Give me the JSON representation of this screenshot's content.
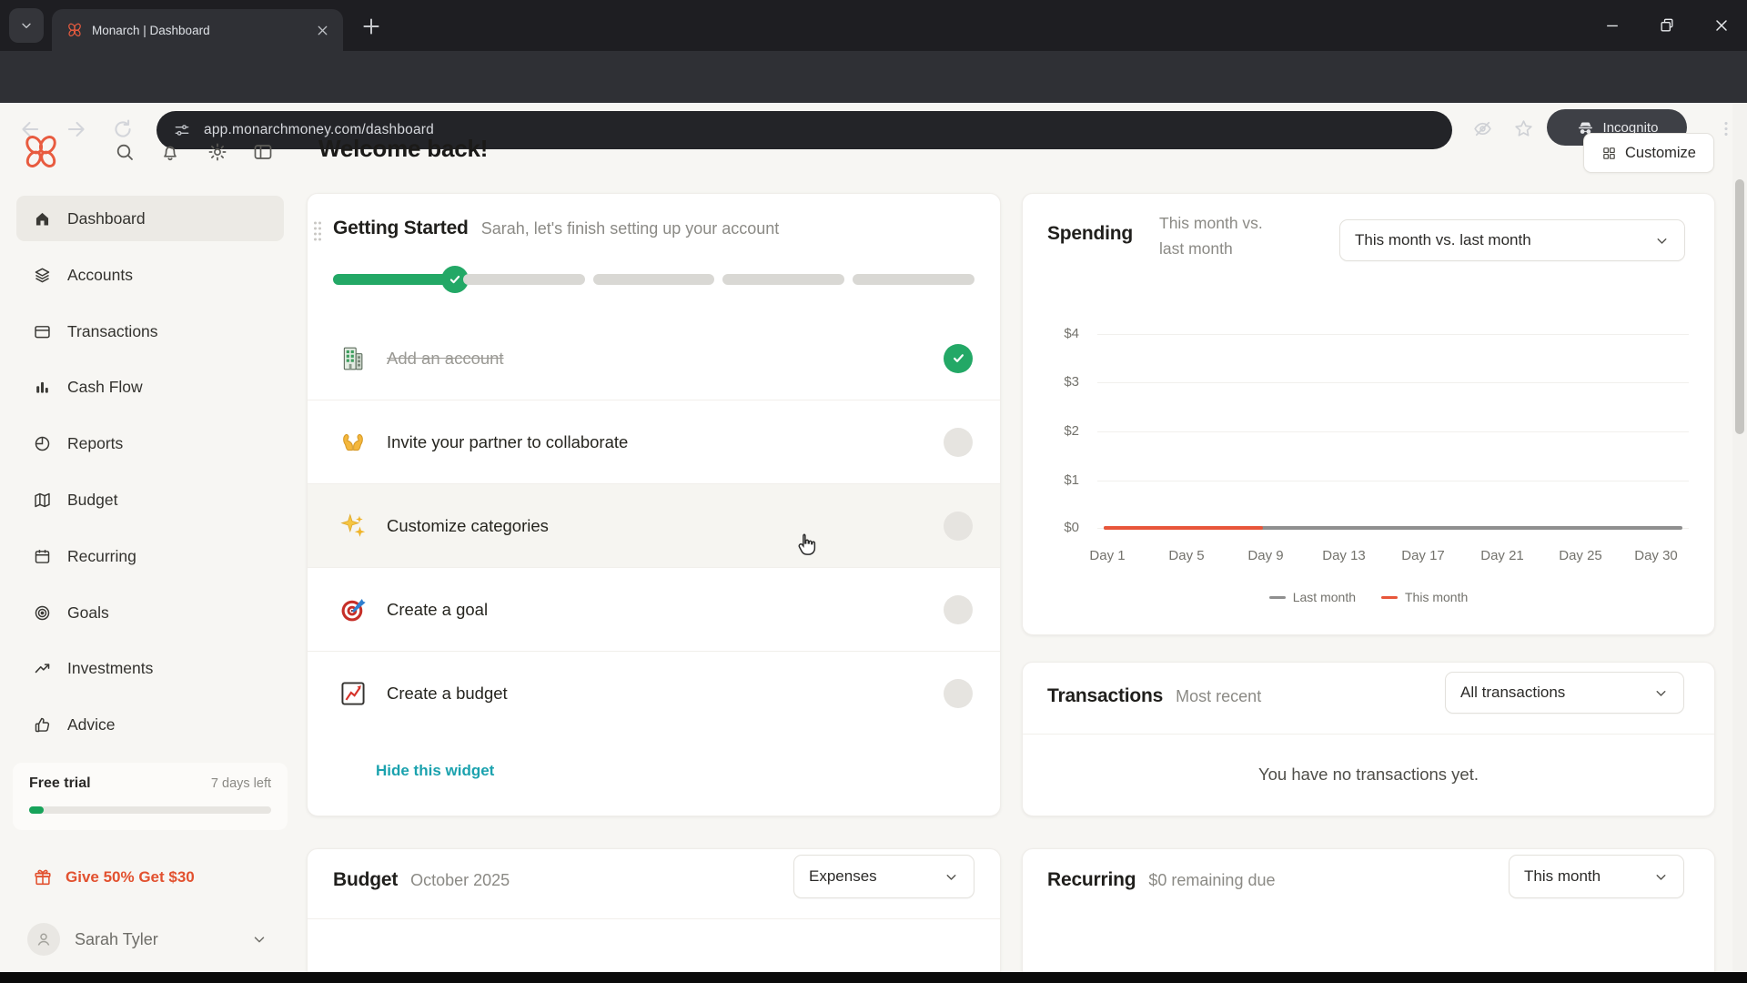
{
  "browser": {
    "tab": {
      "title": "Monarch | Dashboard"
    },
    "url": "app.monarchmoney.com/dashboard",
    "incognito_label": "Incognito"
  },
  "header": {
    "title": "Welcome back!",
    "customize_label": "Customize"
  },
  "sidebar": {
    "items": [
      {
        "label": "Dashboard",
        "icon": "home-icon",
        "active": true
      },
      {
        "label": "Accounts",
        "icon": "accounts-icon",
        "active": false
      },
      {
        "label": "Transactions",
        "icon": "transactions-icon",
        "active": false
      },
      {
        "label": "Cash Flow",
        "icon": "cashflow-icon",
        "active": false
      },
      {
        "label": "Reports",
        "icon": "reports-icon",
        "active": false
      },
      {
        "label": "Budget",
        "icon": "budget-icon",
        "active": false
      },
      {
        "label": "Recurring",
        "icon": "recurring-icon",
        "active": false
      },
      {
        "label": "Goals",
        "icon": "goals-icon",
        "active": false
      },
      {
        "label": "Investments",
        "icon": "investments-icon",
        "active": false
      },
      {
        "label": "Advice",
        "icon": "advice-icon",
        "active": false
      }
    ],
    "trial": {
      "title": "Free trial",
      "remaining": "7 days left"
    },
    "referral_label": "Give 50% Get $30",
    "user_name": "Sarah Tyler"
  },
  "getting_started": {
    "title": "Getting Started",
    "subtitle": "Sarah, let's finish setting up your account",
    "progress": {
      "segments": 5,
      "completed": 1
    },
    "tasks": [
      {
        "label": "Add an account",
        "icon": "bank-icon",
        "done": true,
        "hovered": false
      },
      {
        "label": "Invite your partner to collaborate",
        "icon": "hands-icon",
        "done": false,
        "hovered": false
      },
      {
        "label": "Customize categories",
        "icon": "sparkles-icon",
        "done": false,
        "hovered": true
      },
      {
        "label": "Create a goal",
        "icon": "target-icon",
        "done": false,
        "hovered": false
      },
      {
        "label": "Create a budget",
        "icon": "chartbox-icon",
        "done": false,
        "hovered": false
      }
    ],
    "hide_label": "Hide this widget"
  },
  "budget": {
    "title": "Budget",
    "subtitle": "October 2025",
    "dropdown_value": "Expenses"
  },
  "spending": {
    "title": "Spending",
    "subtitle_line1": "This month vs.",
    "subtitle_line2": "last month",
    "dropdown_value": "This month vs. last month"
  },
  "transactions": {
    "title": "Transactions",
    "subtitle": "Most recent",
    "dropdown_value": "All transactions",
    "empty_message": "You have no transactions yet."
  },
  "recurring": {
    "title": "Recurring",
    "subtitle": "$0 remaining due",
    "dropdown_value": "This month"
  },
  "chart_data": {
    "type": "line",
    "title": "Spending — This month vs. last month",
    "xlabel": "",
    "ylabel": "",
    "x_tick_labels": [
      "Day 1",
      "Day 5",
      "Day 9",
      "Day 13",
      "Day 17",
      "Day 21",
      "Day 25",
      "Day 30"
    ],
    "y_tick_labels": [
      "$4",
      "$3",
      "$2",
      "$1",
      "$0"
    ],
    "ylim": [
      0,
      4
    ],
    "xlim_days": [
      1,
      30
    ],
    "grid": true,
    "legend_position": "bottom",
    "series": [
      {
        "name": "Last month",
        "color": "#8f8f8f",
        "day_start": 1,
        "day_end": 30,
        "values_note": "flat at $0",
        "value": 0
      },
      {
        "name": "This month",
        "color": "#e8563a",
        "day_start": 1,
        "day_end": 9,
        "values_note": "flat at $0",
        "value": 0
      }
    ]
  }
}
